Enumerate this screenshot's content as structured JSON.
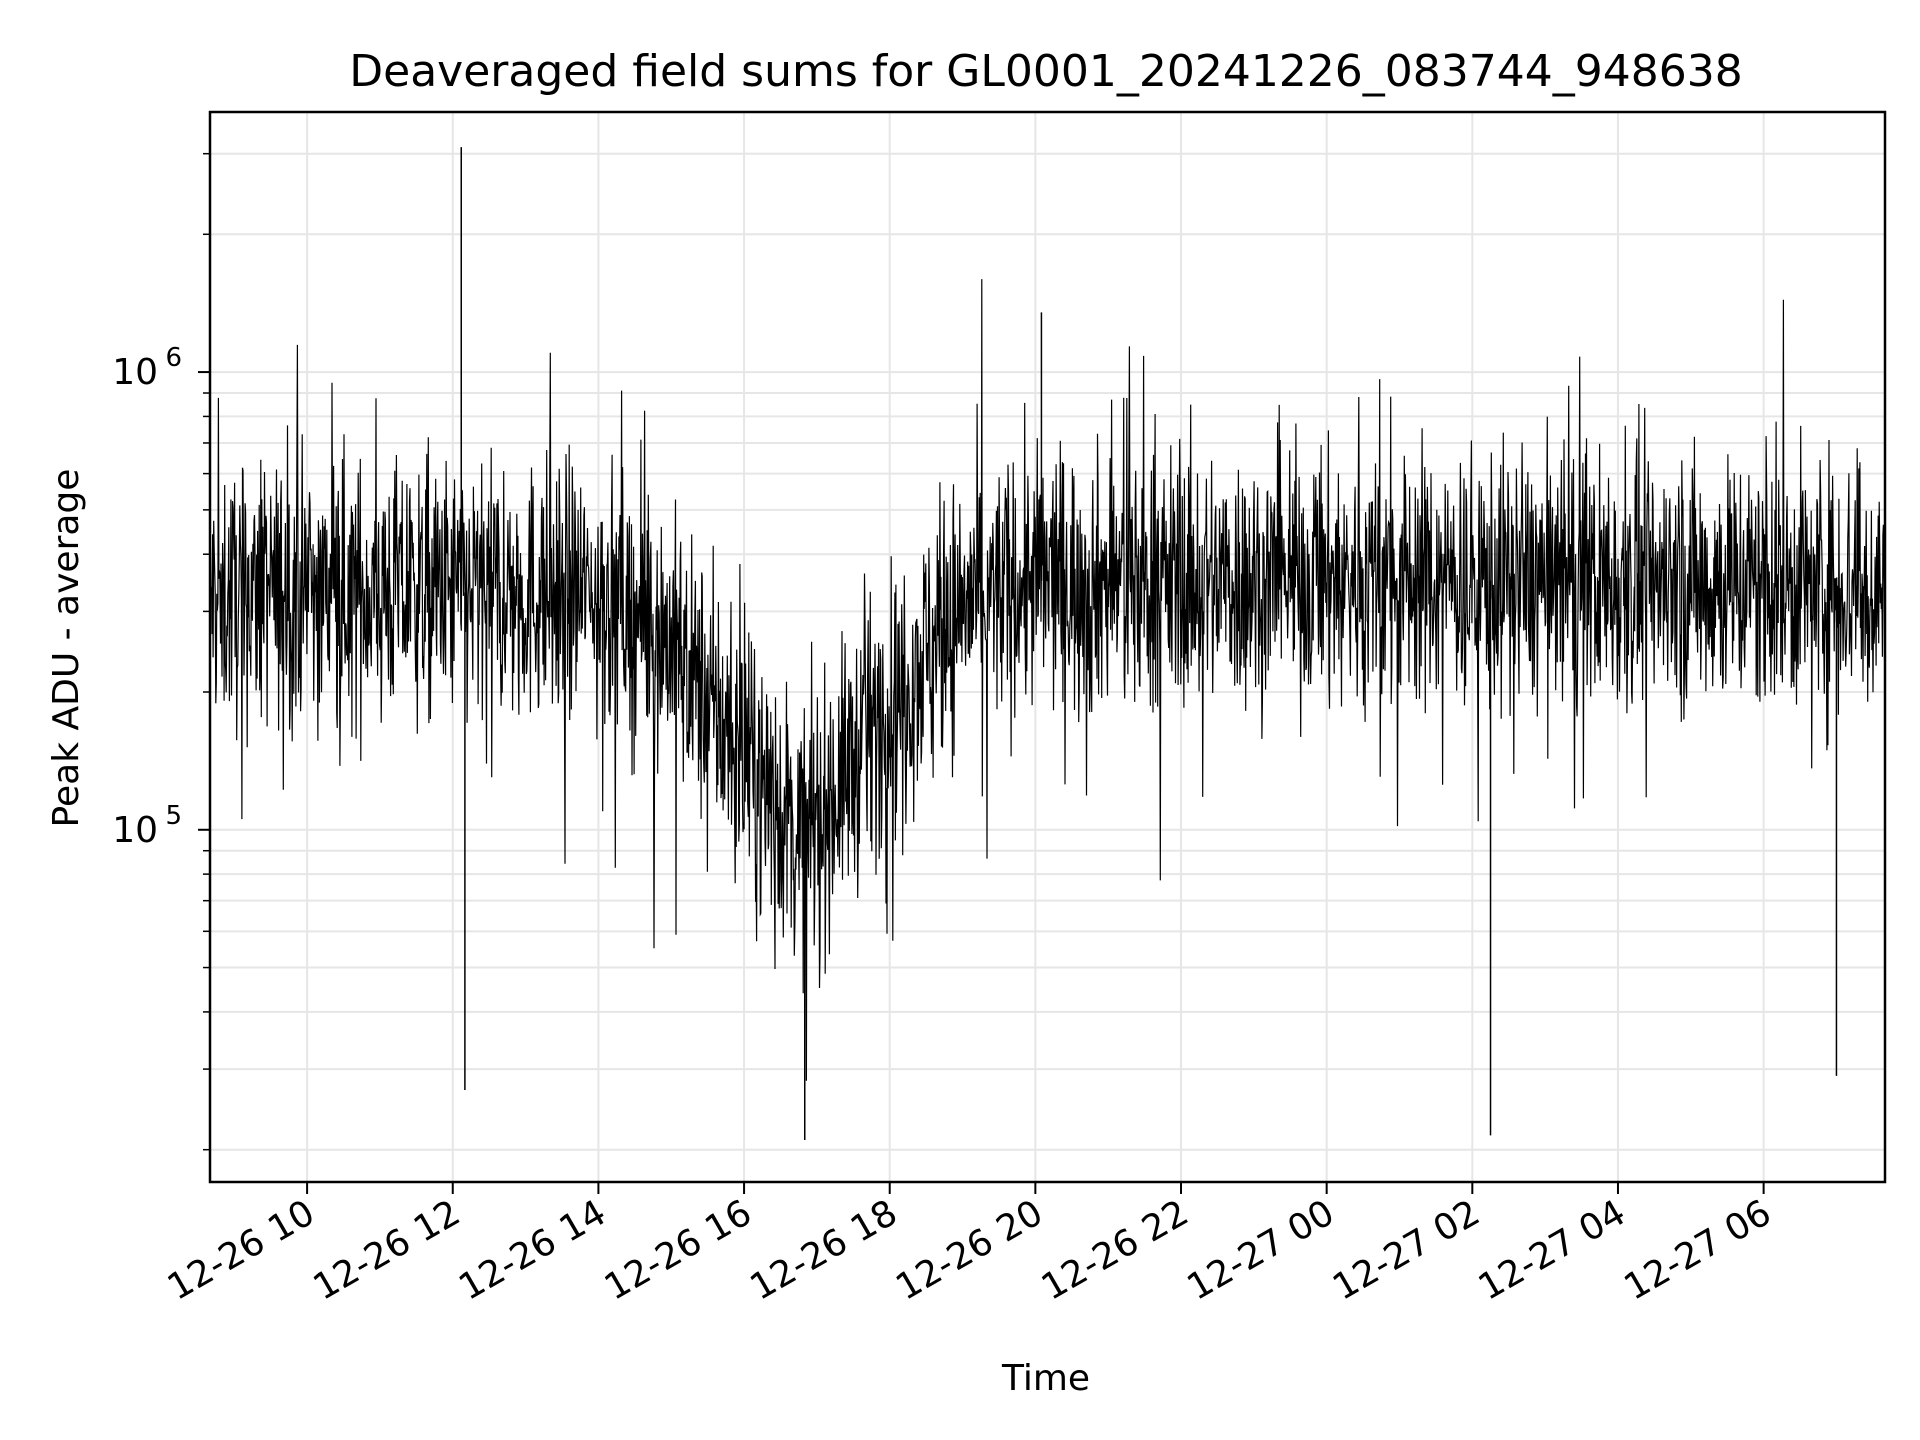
{
  "chart_data": {
    "type": "line",
    "title": "Deaveraged field sums for GL0001_20241226_083744_948638",
    "xlabel": "Time",
    "ylabel": "Peak ADU - average",
    "y_scale": "log",
    "ylim": [
      17000,
      3700000
    ],
    "xlim": [
      "2024-12-26 08:40",
      "2024-12-27 07:40"
    ],
    "grid": true,
    "legend": "none",
    "line_color": "#000000",
    "y_major_ticks": [
      {
        "value": 100000,
        "base": "10",
        "exp": "5"
      },
      {
        "value": 1000000,
        "base": "10",
        "exp": "6"
      }
    ],
    "y_minor_ticks": [
      20000,
      30000,
      40000,
      50000,
      60000,
      70000,
      80000,
      90000,
      200000,
      300000,
      400000,
      500000,
      600000,
      700000,
      800000,
      900000,
      2000000,
      3000000
    ],
    "x_ticks": [
      {
        "value": "2024-12-26 10:00",
        "label": "12-26 10"
      },
      {
        "value": "2024-12-26 12:00",
        "label": "12-26 12"
      },
      {
        "value": "2024-12-26 14:00",
        "label": "12-26 14"
      },
      {
        "value": "2024-12-26 16:00",
        "label": "12-26 16"
      },
      {
        "value": "2024-12-26 18:00",
        "label": "12-26 18"
      },
      {
        "value": "2024-12-26 20:00",
        "label": "12-26 20"
      },
      {
        "value": "2024-12-26 22:00",
        "label": "12-26 22"
      },
      {
        "value": "2024-12-27 00:00",
        "label": "12-27 00"
      },
      {
        "value": "2024-12-27 02:00",
        "label": "12-27 02"
      },
      {
        "value": "2024-12-27 04:00",
        "label": "12-27 04"
      },
      {
        "value": "2024-12-27 06:00",
        "label": "12-27 06"
      }
    ],
    "series": [
      {
        "baseline_envelope": [
          {
            "x": "2024-12-26 08:40",
            "y": 320000
          },
          {
            "x": "2024-12-26 10:00",
            "y": 330000
          },
          {
            "x": "2024-12-26 12:00",
            "y": 330000
          },
          {
            "x": "2024-12-26 14:00",
            "y": 330000
          },
          {
            "x": "2024-12-26 15:00",
            "y": 260000
          },
          {
            "x": "2024-12-26 16:00",
            "y": 140000
          },
          {
            "x": "2024-12-26 16:50",
            "y": 95000
          },
          {
            "x": "2024-12-26 18:00",
            "y": 190000
          },
          {
            "x": "2024-12-26 19:00",
            "y": 310000
          },
          {
            "x": "2024-12-26 20:00",
            "y": 350000
          },
          {
            "x": "2024-12-27 00:00",
            "y": 350000
          },
          {
            "x": "2024-12-27 04:00",
            "y": 350000
          },
          {
            "x": "2024-12-27 07:40",
            "y": 340000
          }
        ],
        "notable_points": [
          {
            "x": "2024-12-26 12:07",
            "y": 3100000
          },
          {
            "x": "2024-12-26 12:10",
            "y": 27000
          },
          {
            "x": "2024-12-26 16:50",
            "y": 21000
          },
          {
            "x": "2024-12-26 20:05",
            "y": 1350000
          },
          {
            "x": "2024-12-27 02:15",
            "y": 21500
          },
          {
            "x": "2024-12-27 07:00",
            "y": 29000
          }
        ]
      }
    ]
  }
}
